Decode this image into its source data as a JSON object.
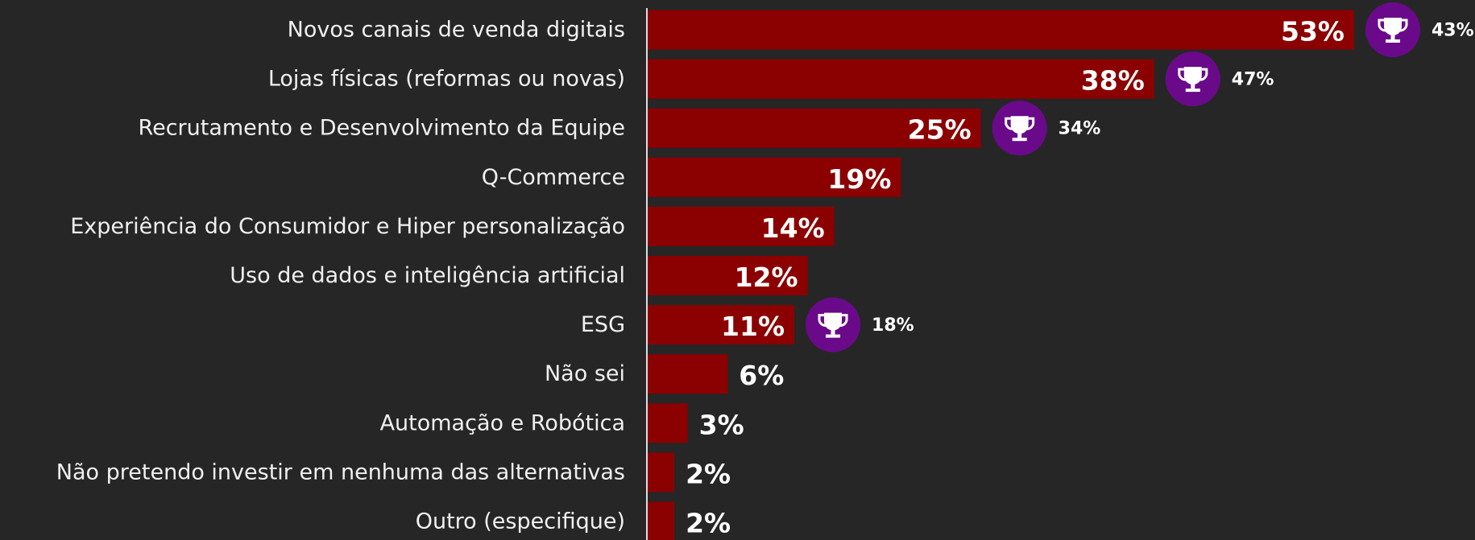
{
  "chart_data": {
    "type": "hbar",
    "categories": [
      "Novos canais de venda digitais",
      "Lojas físicas (reformas ou novas)",
      "Recrutamento e Desenvolvimento da Equipe",
      "Q-Commerce",
      "Experiência do Consumidor e Hiper personalização",
      "Uso de dados e inteligência artificial",
      "ESG",
      "Não sei",
      "Automação e Robótica",
      "Não pretendo investir em nenhuma das alternativas",
      "Outro (especifique)"
    ],
    "values": [
      53,
      38,
      25,
      19,
      14,
      12,
      11,
      6,
      3,
      2,
      2
    ],
    "value_labels": [
      "53%",
      "38%",
      "25%",
      "19%",
      "14%",
      "12%",
      "11%",
      "6%",
      "3%",
      "2%",
      "2%"
    ],
    "trophy_values": [
      43,
      47,
      34,
      null,
      null,
      null,
      18,
      null,
      null,
      null,
      null
    ],
    "trophy_labels": [
      "43%",
      "47%",
      "34%",
      null,
      null,
      null,
      "18%",
      null,
      null,
      null,
      null
    ],
    "color": "#8b0000",
    "trophy_color": "#6a0a8a",
    "xlim": [
      0,
      53
    ]
  }
}
